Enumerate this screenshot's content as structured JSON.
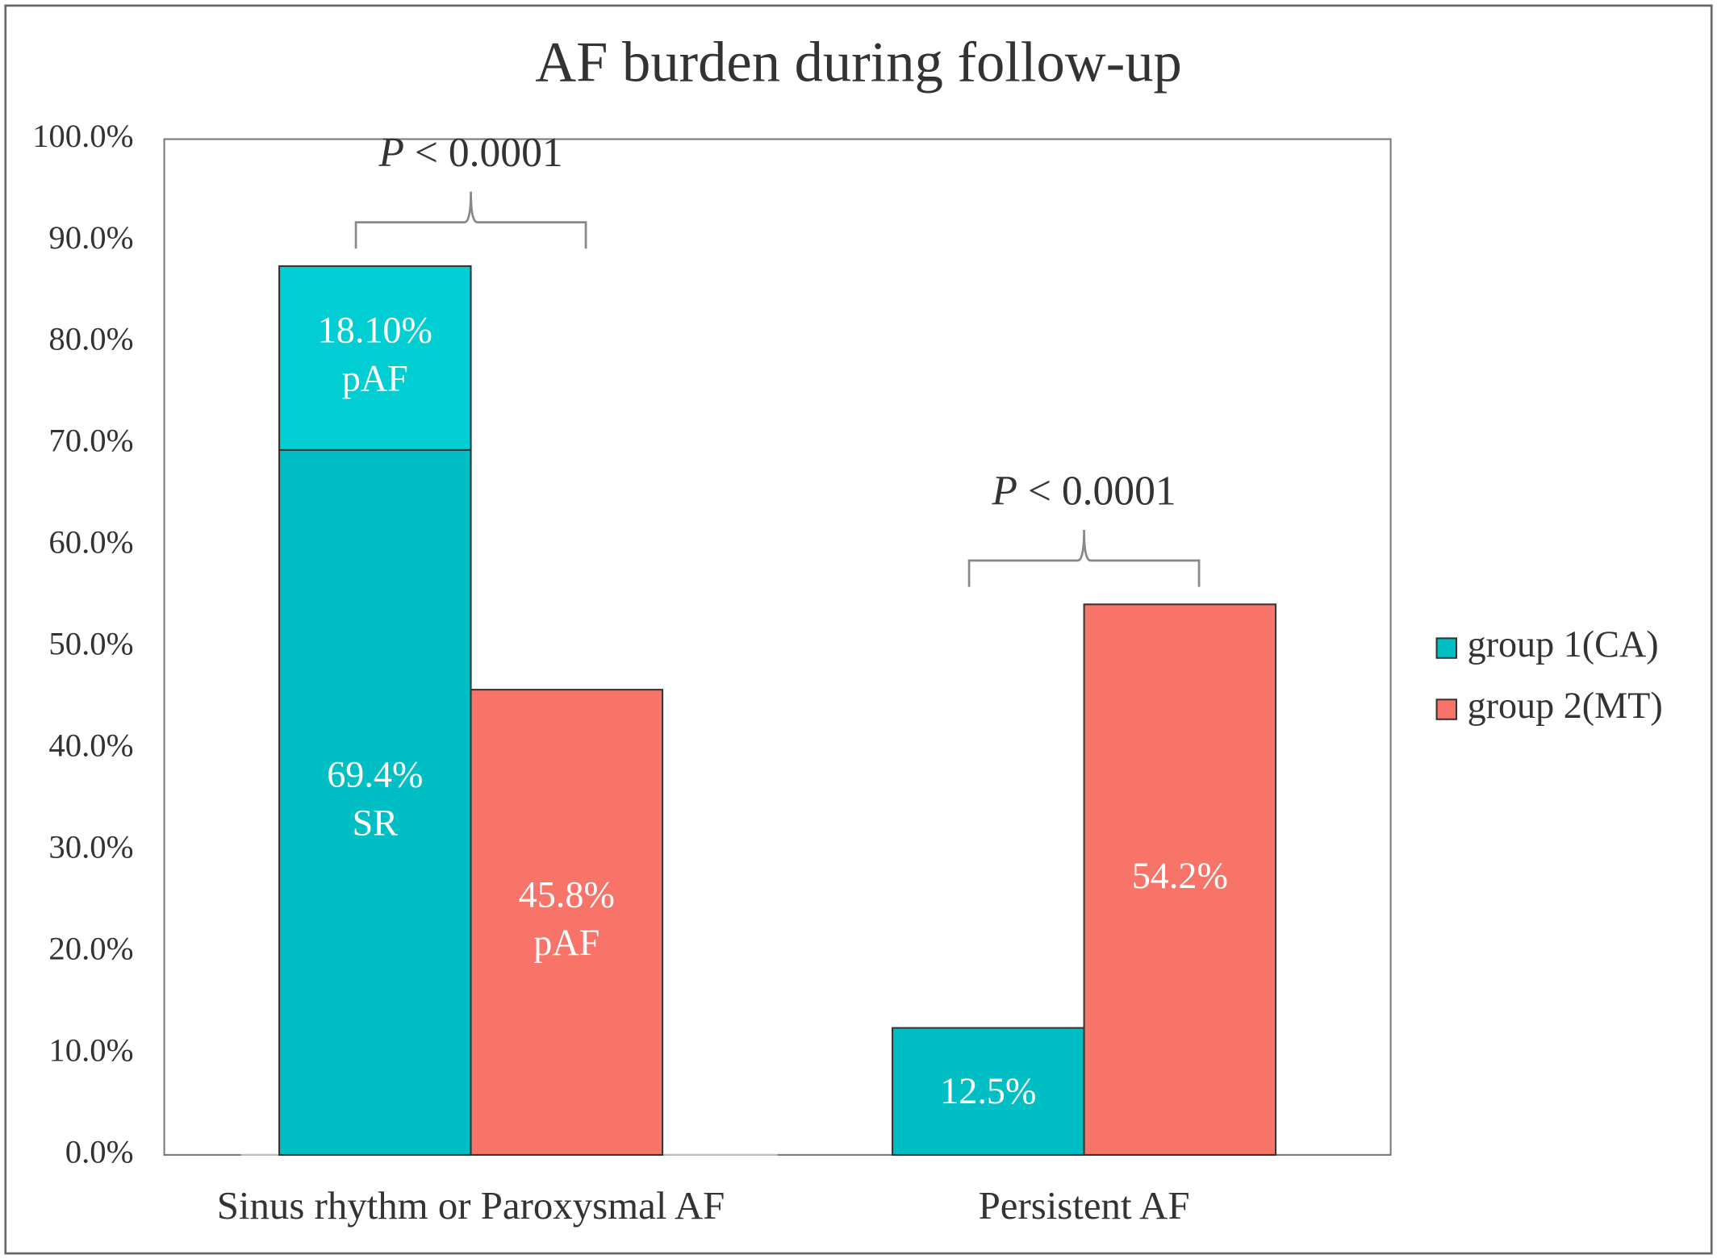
{
  "chart_data": {
    "type": "bar",
    "title": "AF burden during follow-up",
    "categories": [
      "Sinus rhythm or Paroxysmal AF",
      "Persistent AF"
    ],
    "series": [
      {
        "name": "group 1(CA)",
        "color": "#00bfc4",
        "values": [
          69.4,
          12.5
        ],
        "value_labels": [
          "69.4%",
          "12.5%"
        ],
        "notes": [
          "SR",
          null
        ]
      },
      {
        "color": "#00ced3",
        "values": [
          18.1,
          null
        ],
        "value_labels": [
          "18.10%",
          null
        ],
        "notes": [
          "pAF",
          null
        ],
        "stack": 0
      },
      {
        "name": "group 2(MT)",
        "color": "#f87468",
        "values": [
          45.8,
          54.2
        ],
        "value_labels": [
          "45.8%",
          "54.2%"
        ],
        "notes": [
          "pAF",
          null
        ]
      }
    ],
    "annotations": [
      {
        "italic": "P",
        "text": " < 0.0001"
      },
      {
        "italic": "P",
        "text": " < 0.0001"
      }
    ],
    "ylim": [
      0,
      100
    ],
    "yticks": [
      {
        "value": 0,
        "label": "0.0%"
      },
      {
        "value": 10,
        "label": "10.0%"
      },
      {
        "value": 20,
        "label": "20.0%"
      },
      {
        "value": 30,
        "label": "30.0%"
      },
      {
        "value": 40,
        "label": "40.0%"
      },
      {
        "value": 50,
        "label": "50.0%"
      },
      {
        "value": 60,
        "label": "60.0%"
      },
      {
        "value": 70,
        "label": "70.0%"
      },
      {
        "value": 80,
        "label": "80.0%"
      },
      {
        "value": 90,
        "label": "90.0%"
      },
      {
        "value": 100,
        "label": "100.0%"
      }
    ],
    "legend": "right",
    "grid": false
  }
}
